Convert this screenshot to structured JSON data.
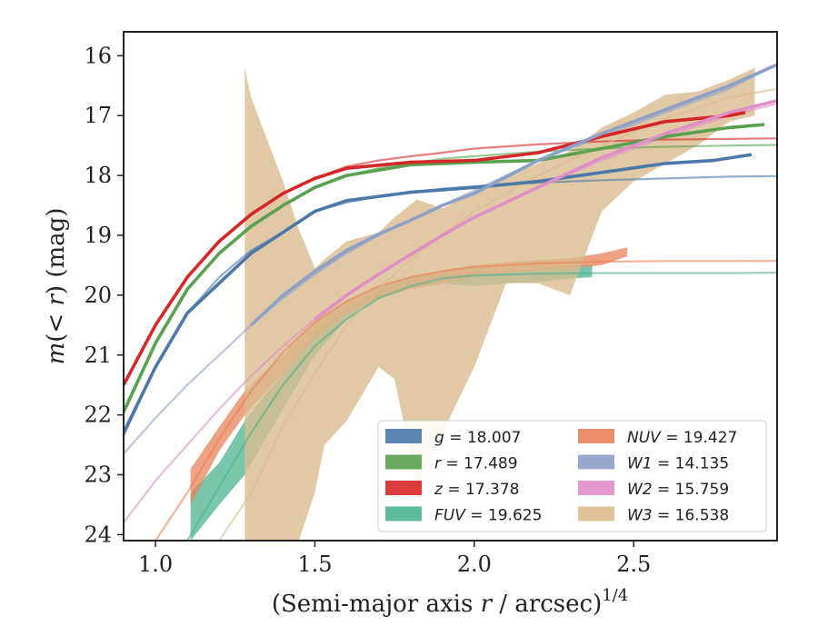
{
  "chart_data": {
    "type": "line",
    "xlabel": "(Semi-major axis r / arcsec)",
    "xlabel_exponent": "1/4",
    "ylabel": "m(< r) (mag)",
    "xlim": [
      0.9,
      2.95
    ],
    "ylim": [
      24.1,
      15.6
    ],
    "y_inverted": true,
    "x_ticks": [
      "1.0",
      "1.5",
      "2.0",
      "2.5"
    ],
    "x_tick_values": [
      1.0,
      1.5,
      2.0,
      2.5
    ],
    "y_ticks": [
      "16",
      "17",
      "18",
      "19",
      "20",
      "21",
      "22",
      "23",
      "24"
    ],
    "y_tick_values": [
      16,
      17,
      18,
      19,
      20,
      21,
      22,
      23,
      24
    ],
    "legend_placement": "lower-right",
    "series": [
      {
        "key": "g",
        "label": "g = 18.007",
        "color": "#4c78a8",
        "model_x": [
          0.9,
          1.0,
          1.1,
          1.2,
          1.3,
          1.4,
          1.5,
          1.6,
          1.7,
          1.8,
          1.9,
          2.0,
          2.2,
          2.4,
          2.6,
          2.8,
          2.95
        ],
        "model_y": [
          22.35,
          21.2,
          20.3,
          19.7,
          19.25,
          18.95,
          18.6,
          18.45,
          18.35,
          18.28,
          18.22,
          18.18,
          18.12,
          18.08,
          18.05,
          18.02,
          18.01
        ],
        "obs_x": [
          0.9,
          1.0,
          1.1,
          1.2,
          1.3,
          1.4,
          1.5,
          1.6,
          1.8,
          2.0,
          2.2,
          2.4,
          2.6,
          2.75,
          2.87
        ],
        "obs_y": [
          22.3,
          21.2,
          20.3,
          19.8,
          19.3,
          18.95,
          18.6,
          18.42,
          18.28,
          18.2,
          18.1,
          17.95,
          17.8,
          17.75,
          17.65
        ]
      },
      {
        "key": "r",
        "label": "r = 17.489",
        "color": "#59a14f",
        "model_x": [
          0.9,
          1.0,
          1.1,
          1.2,
          1.3,
          1.4,
          1.5,
          1.6,
          1.7,
          1.8,
          1.9,
          2.0,
          2.2,
          2.4,
          2.6,
          2.8,
          2.95
        ],
        "model_y": [
          21.95,
          20.8,
          19.9,
          19.3,
          18.85,
          18.5,
          18.2,
          18.0,
          17.88,
          17.8,
          17.72,
          17.68,
          17.6,
          17.55,
          17.52,
          17.5,
          17.49
        ],
        "obs_x": [
          0.9,
          1.0,
          1.1,
          1.2,
          1.3,
          1.4,
          1.5,
          1.6,
          1.8,
          2.0,
          2.2,
          2.4,
          2.6,
          2.8,
          2.91
        ],
        "obs_y": [
          21.95,
          20.8,
          19.9,
          19.3,
          18.85,
          18.5,
          18.2,
          18.0,
          17.82,
          17.78,
          17.75,
          17.55,
          17.35,
          17.2,
          17.15
        ]
      },
      {
        "key": "z",
        "label": "z = 17.378",
        "color": "#d62728",
        "model_x": [
          0.9,
          1.0,
          1.1,
          1.2,
          1.3,
          1.4,
          1.5,
          1.6,
          1.7,
          1.8,
          1.9,
          2.0,
          2.2,
          2.4,
          2.6,
          2.8,
          2.95
        ],
        "model_y": [
          21.5,
          20.5,
          19.7,
          19.1,
          18.65,
          18.3,
          18.05,
          17.85,
          17.75,
          17.68,
          17.62,
          17.55,
          17.48,
          17.43,
          17.4,
          17.39,
          17.38
        ],
        "obs_x": [
          0.9,
          1.0,
          1.1,
          1.2,
          1.3,
          1.4,
          1.5,
          1.6,
          1.8,
          2.0,
          2.2,
          2.4,
          2.6,
          2.8,
          2.85
        ],
        "obs_y": [
          21.5,
          20.5,
          19.7,
          19.1,
          18.65,
          18.3,
          18.05,
          17.88,
          17.78,
          17.75,
          17.62,
          17.35,
          17.1,
          17.0,
          16.95
        ]
      },
      {
        "key": "FUV",
        "label": "FUV = 19.625",
        "color": "#4db38f",
        "model_x": [
          1.1,
          1.2,
          1.3,
          1.4,
          1.5,
          1.6,
          1.7,
          1.8,
          1.9,
          2.0,
          2.2,
          2.4,
          2.6,
          2.8,
          2.95
        ],
        "model_y": [
          24.1,
          23.2,
          22.3,
          21.5,
          20.85,
          20.4,
          20.05,
          19.85,
          19.72,
          19.67,
          19.64,
          19.63,
          19.63,
          19.63,
          19.625
        ],
        "band_x": [
          1.11,
          1.2,
          1.28,
          1.4,
          1.5,
          1.6,
          1.7,
          1.8,
          1.9,
          2.0,
          2.1,
          2.2,
          2.3,
          2.37
        ],
        "band_lo": [
          24.1,
          23.5,
          23.0,
          21.9,
          21.0,
          20.4,
          20.05,
          19.9,
          19.8,
          19.85,
          19.8,
          19.78,
          19.72,
          19.7
        ],
        "band_hi": [
          23.3,
          22.8,
          22.1,
          21.3,
          20.6,
          20.2,
          19.9,
          19.7,
          19.65,
          19.62,
          19.58,
          19.55,
          19.5,
          19.5
        ]
      },
      {
        "key": "NUV",
        "label": "NUV = 19.427",
        "color": "#e8825a",
        "model_x": [
          1.0,
          1.1,
          1.2,
          1.3,
          1.4,
          1.5,
          1.6,
          1.7,
          1.8,
          1.9,
          2.0,
          2.2,
          2.4,
          2.6,
          2.8,
          2.95
        ],
        "model_y": [
          24.1,
          23.3,
          22.4,
          21.6,
          20.95,
          20.45,
          20.1,
          19.85,
          19.7,
          19.6,
          19.53,
          19.47,
          19.44,
          19.43,
          19.43,
          19.427
        ],
        "band_x": [
          1.11,
          1.2,
          1.28,
          1.4,
          1.5,
          1.6,
          1.7,
          1.8,
          1.9,
          2.0,
          2.1,
          2.2,
          2.3,
          2.4,
          2.48
        ],
        "band_lo": [
          23.5,
          22.6,
          22.0,
          21.3,
          20.7,
          20.3,
          20.05,
          19.9,
          19.8,
          19.68,
          19.62,
          19.58,
          19.55,
          19.5,
          19.35
        ],
        "band_hi": [
          22.9,
          22.2,
          21.6,
          21.0,
          20.45,
          20.1,
          19.85,
          19.7,
          19.58,
          19.5,
          19.45,
          19.42,
          19.38,
          19.3,
          19.2
        ]
      },
      {
        "key": "W1",
        "label": "W1 = 14.135",
        "color": "#8ea0c8",
        "model_x": [
          0.9,
          1.0,
          1.1,
          1.2,
          1.3,
          1.4,
          1.5,
          1.6,
          1.7,
          1.8,
          1.9,
          2.0,
          2.2,
          2.4,
          2.6,
          2.8,
          2.95
        ],
        "model_y": [
          22.65,
          22.05,
          21.5,
          21.0,
          20.5,
          20.05,
          19.65,
          19.3,
          19.0,
          18.75,
          18.5,
          18.25,
          17.75,
          17.35,
          16.95,
          16.55,
          16.15
        ],
        "obs_x": [
          1.3,
          1.4,
          1.5,
          1.6,
          1.7,
          1.8,
          1.9,
          2.0,
          2.2,
          2.4,
          2.6,
          2.8,
          2.95
        ],
        "obs_y": [
          20.5,
          20.0,
          19.6,
          19.25,
          18.98,
          18.75,
          18.5,
          18.3,
          17.75,
          17.3,
          16.9,
          16.5,
          16.15
        ]
      },
      {
        "key": "W2",
        "label": "W2 = 15.759",
        "color": "#e08ec8",
        "model_x": [
          0.9,
          1.0,
          1.1,
          1.2,
          1.3,
          1.4,
          1.5,
          1.6,
          1.7,
          1.8,
          1.9,
          2.0,
          2.2,
          2.4,
          2.6,
          2.8,
          2.95
        ],
        "model_y": [
          23.8,
          23.1,
          22.5,
          21.9,
          21.35,
          20.85,
          20.4,
          20.0,
          19.65,
          19.32,
          19.0,
          18.7,
          18.2,
          17.75,
          17.35,
          17.0,
          16.8
        ],
        "obs_x": [
          1.5,
          1.6,
          1.7,
          1.8,
          1.9,
          2.0,
          2.2,
          2.4,
          2.6,
          2.8,
          2.95
        ],
        "obs_y": [
          20.4,
          20.0,
          19.65,
          19.32,
          19.0,
          18.7,
          18.2,
          17.7,
          17.3,
          16.95,
          16.75
        ]
      },
      {
        "key": "W3",
        "label": "W3 = 16.538",
        "color": "#d9bb8f",
        "model_x": [
          1.2,
          1.3,
          1.4,
          1.5,
          1.6,
          1.7,
          1.8,
          1.9,
          2.0,
          2.2,
          2.4,
          2.6,
          2.8,
          2.95
        ],
        "model_y": [
          24.1,
          23.3,
          22.2,
          21.3,
          20.5,
          19.9,
          19.4,
          19.0,
          18.6,
          18.0,
          17.5,
          17.05,
          16.7,
          16.55
        ],
        "band_x": [
          1.28,
          1.3,
          1.4,
          1.45,
          1.5,
          1.53,
          1.6,
          1.7,
          1.75,
          1.82,
          1.9,
          2.0,
          2.1,
          2.2,
          2.3,
          2.4,
          2.5,
          2.6,
          2.7,
          2.8,
          2.88
        ],
        "band_lo": [
          24.1,
          24.1,
          24.1,
          24.1,
          23.3,
          22.5,
          22.1,
          21.2,
          21.4,
          23.2,
          22.3,
          21.2,
          19.8,
          19.8,
          20.0,
          18.6,
          18.1,
          17.8,
          17.5,
          17.1,
          17.0
        ],
        "band_hi": [
          16.2,
          16.7,
          18.1,
          18.9,
          19.55,
          19.4,
          19.1,
          18.95,
          18.7,
          18.4,
          18.55,
          18.3,
          18.0,
          17.8,
          17.6,
          17.2,
          16.95,
          16.65,
          16.6,
          16.4,
          16.2
        ]
      }
    ]
  },
  "legend": {
    "columns": [
      [
        {
          "key": "g",
          "name": "g",
          "value": "= 18.007"
        },
        {
          "key": "r",
          "name": "r",
          "value": "= 17.489"
        },
        {
          "key": "z",
          "name": "z",
          "value": "= 17.378"
        },
        {
          "key": "FUV",
          "name": "FUV",
          "value": "= 19.625"
        }
      ],
      [
        {
          "key": "NUV",
          "name": "NUV",
          "value": "= 19.427"
        },
        {
          "key": "W1",
          "name": "W1",
          "value": "= 14.135"
        },
        {
          "key": "W2",
          "name": "W2",
          "value": "= 15.759"
        },
        {
          "key": "W3",
          "name": "W3",
          "value": "= 16.538"
        }
      ]
    ]
  }
}
